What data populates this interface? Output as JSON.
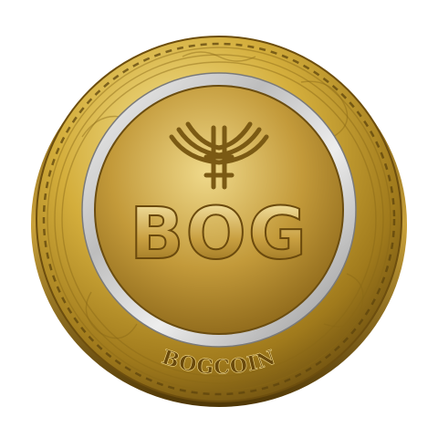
{
  "coin": {
    "symbol": "BOG",
    "name": "BOGCOIN",
    "emblem": "bog-emblem-icon",
    "colors": {
      "gold_light": "#f4e28a",
      "gold_mid": "#c9a232",
      "gold_dark": "#7a5a12",
      "silver_light": "#f2f2f2",
      "silver_dark": "#9a9a9a"
    }
  }
}
